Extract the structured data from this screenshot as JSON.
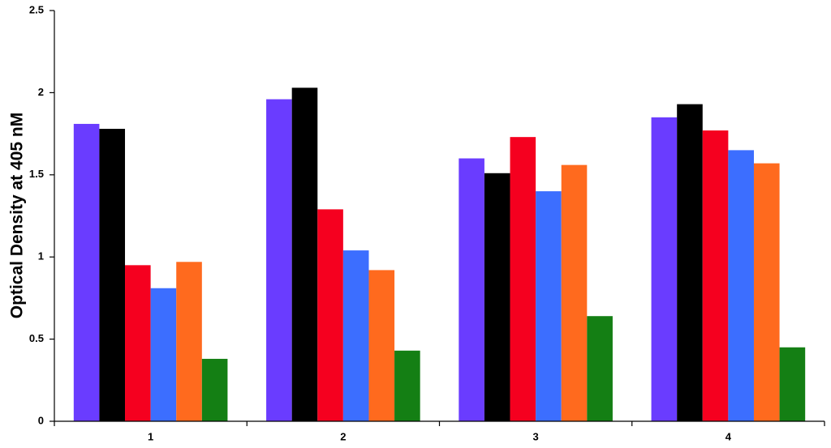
{
  "chart_data": {
    "type": "bar",
    "title": "",
    "xlabel": "",
    "ylabel": "Optical Density at 405 nM",
    "ylim": [
      0,
      2.5
    ],
    "yticks": [
      "0",
      "0.5",
      "1",
      "1.5",
      "2",
      "2.5"
    ],
    "categories": [
      "1",
      "2",
      "3",
      "4"
    ],
    "grid": false,
    "legend": "none",
    "series": [
      {
        "color": "#6a3cff",
        "values": [
          1.81,
          1.96,
          1.6,
          1.85
        ]
      },
      {
        "color": "#000000",
        "values": [
          1.78,
          2.03,
          1.51,
          1.93
        ]
      },
      {
        "color": "#f5001f",
        "values": [
          0.95,
          1.29,
          1.73,
          1.77
        ]
      },
      {
        "color": "#3c6eff",
        "values": [
          0.81,
          1.04,
          1.4,
          1.65
        ]
      },
      {
        "color": "#ff6a1e",
        "values": [
          0.97,
          0.92,
          1.56,
          1.57
        ]
      },
      {
        "color": "#147f14",
        "values": [
          0.38,
          0.43,
          0.64,
          0.45
        ]
      }
    ]
  }
}
